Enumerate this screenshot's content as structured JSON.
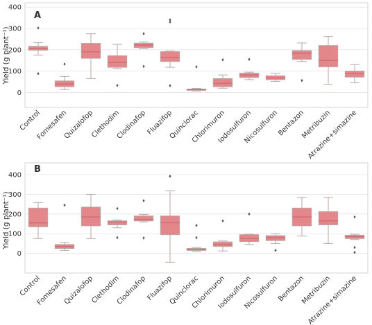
{
  "chart_data": [
    {
      "type": "box",
      "panel_label": "A",
      "ylabel": "Yield (g plant⁻¹)",
      "ylim": [
        -70,
        420
      ],
      "yticks": [
        0,
        100,
        200,
        300,
        400
      ],
      "grid": true,
      "box_color": "#e3878a",
      "edge_color": "#b8a6a6",
      "categories": [
        "Control",
        "Fomesafen",
        "Quizalofop",
        "Clethodim",
        "Clodinafop",
        "Fluazifop",
        "Quinclorac",
        "Chlorimuron",
        "Iodosulfuron",
        "Nicosulfuron",
        "Bentazon",
        "Metribuzin",
        "Atrazine+simazine"
      ],
      "boxes": [
        {
          "whislo": 175,
          "q1": 198,
          "med": 205,
          "q3": 216,
          "whishi": 233,
          "fliers": [
            88,
            302
          ]
        },
        {
          "whislo": 14,
          "q1": 27,
          "med": 40,
          "q3": 54,
          "whishi": 75,
          "fliers": [
            133
          ]
        },
        {
          "whislo": 65,
          "q1": 160,
          "med": 190,
          "q3": 230,
          "whishi": 275,
          "fliers": []
        },
        {
          "whislo": 112,
          "q1": 118,
          "med": 140,
          "q3": 172,
          "whishi": 225,
          "fliers": [
            33
          ]
        },
        {
          "whislo": 205,
          "q1": 210,
          "med": 222,
          "q3": 231,
          "whishi": 237,
          "fliers": [
            122,
            275
          ]
        },
        {
          "whislo": 118,
          "q1": 145,
          "med": 165,
          "q3": 191,
          "whishi": 194,
          "fliers": [
            32,
            330,
            340
          ]
        },
        {
          "whislo": 7,
          "q1": 10,
          "med": 13,
          "q3": 16,
          "whishi": 19,
          "fliers": [
            120
          ]
        },
        {
          "whislo": 20,
          "q1": 27,
          "med": 43,
          "q3": 65,
          "whishi": 82,
          "fliers": [
            153
          ]
        },
        {
          "whislo": 60,
          "q1": 70,
          "med": 82,
          "q3": 90,
          "whishi": 95,
          "fliers": [
            155
          ]
        },
        {
          "whislo": 52,
          "q1": 60,
          "med": 68,
          "q3": 78,
          "whishi": 90,
          "fliers": []
        },
        {
          "whislo": 145,
          "q1": 155,
          "med": 184,
          "q3": 196,
          "whishi": 232,
          "fliers": [
            56
          ]
        },
        {
          "whislo": 38,
          "q1": 120,
          "med": 150,
          "q3": 220,
          "whishi": 262,
          "fliers": []
        },
        {
          "whislo": 45,
          "q1": 72,
          "med": 88,
          "q3": 100,
          "whishi": 130,
          "fliers": []
        }
      ]
    },
    {
      "type": "box",
      "panel_label": "B",
      "ylabel": "Yield (g plant⁻¹)",
      "ylim": [
        -100,
        460
      ],
      "yticks": [
        0,
        100,
        200,
        300,
        400
      ],
      "grid": true,
      "box_color": "#e3878a",
      "edge_color": "#b8a6a6",
      "categories": [
        "Control",
        "Fomesafen",
        "Quizalofop",
        "Clethodim",
        "Clodinafop",
        "Fluazifop",
        "Quinclorac",
        "Chlorimuron",
        "Iodosulfuron",
        "Nicosulfuron",
        "Bentazon",
        "Metribuzin",
        "Atrazine+simazine"
      ],
      "boxes": [
        {
          "whislo": 75,
          "q1": 135,
          "med": 155,
          "q3": 230,
          "whishi": 258,
          "fliers": []
        },
        {
          "whislo": 15,
          "q1": 25,
          "med": 35,
          "q3": 45,
          "whishi": 55,
          "fliers": [
            245
          ]
        },
        {
          "whislo": 75,
          "q1": 140,
          "med": 185,
          "q3": 235,
          "whishi": 300,
          "fliers": []
        },
        {
          "whislo": 130,
          "q1": 145,
          "med": 160,
          "q3": 165,
          "whishi": 170,
          "fliers": [
            80,
            228
          ]
        },
        {
          "whislo": 160,
          "q1": 165,
          "med": 172,
          "q3": 190,
          "whishi": 198,
          "fliers": [
            78,
            268
          ]
        },
        {
          "whislo": -45,
          "q1": 95,
          "med": 155,
          "q3": 190,
          "whishi": 318,
          "fliers": [
            392
          ]
        },
        {
          "whislo": 10,
          "q1": 15,
          "med": 20,
          "q3": 25,
          "whishi": 30,
          "fliers": [
            80,
            142
          ]
        },
        {
          "whislo": 12,
          "q1": 35,
          "med": 45,
          "q3": 58,
          "whishi": 63,
          "fliers": [
            165
          ]
        },
        {
          "whislo": 45,
          "q1": 60,
          "med": 75,
          "q3": 95,
          "whishi": 97,
          "fliers": [
            200
          ]
        },
        {
          "whislo": 50,
          "q1": 65,
          "med": 80,
          "q3": 90,
          "whishi": 100,
          "fliers": [
            15
          ]
        },
        {
          "whislo": 88,
          "q1": 140,
          "med": 185,
          "q3": 230,
          "whishi": 285,
          "fliers": []
        },
        {
          "whislo": 50,
          "q1": 145,
          "med": 165,
          "q3": 212,
          "whishi": 285,
          "fliers": []
        },
        {
          "whislo": 70,
          "q1": 75,
          "med": 85,
          "q3": 92,
          "whishi": 97,
          "fliers": [
            5,
            30,
            185
          ]
        }
      ]
    }
  ]
}
